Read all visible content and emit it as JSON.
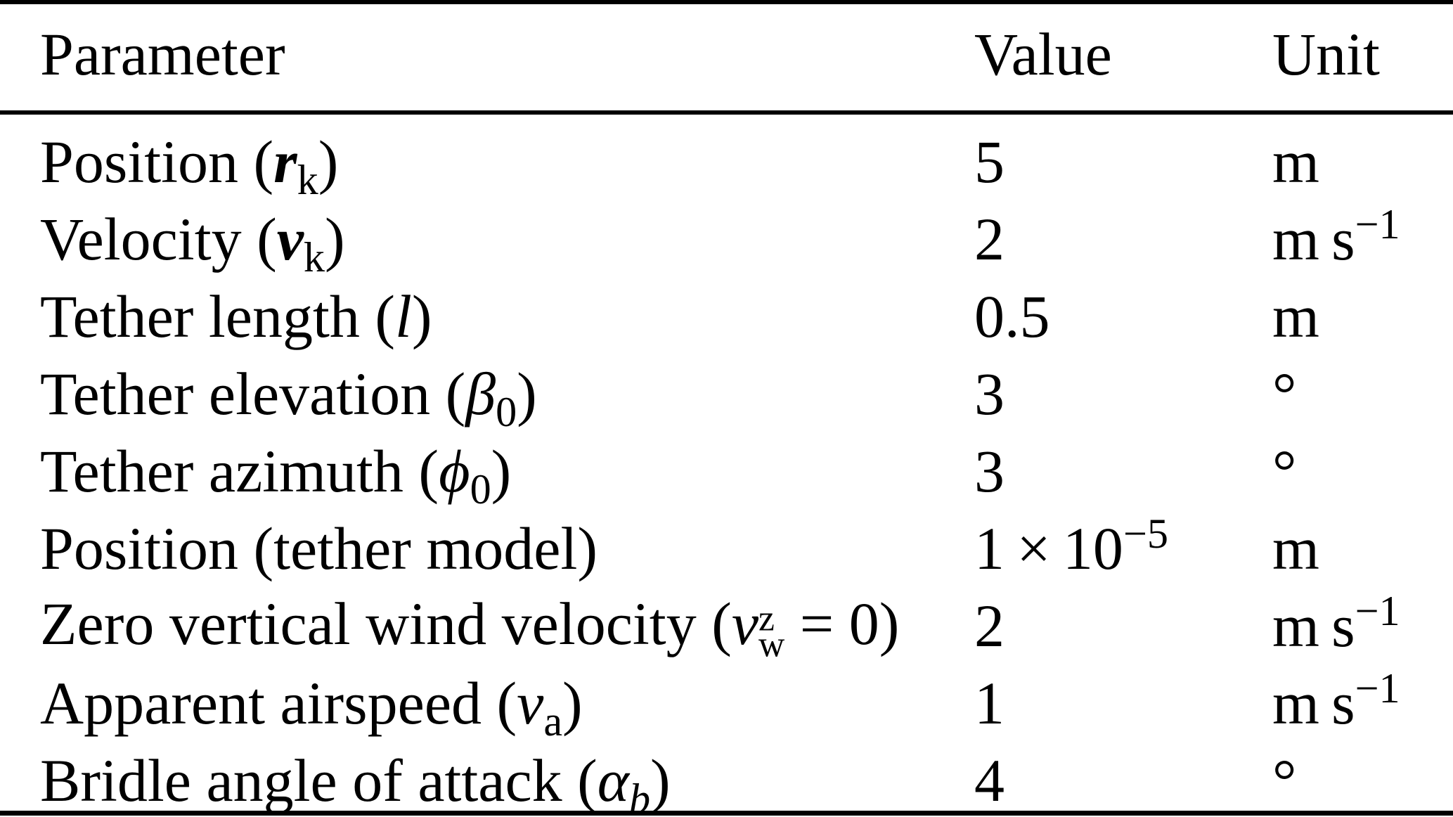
{
  "colors": {
    "text": "#000000",
    "background": "#ffffff",
    "rule": "#000000"
  },
  "table": {
    "headers": {
      "parameter": "Parameter",
      "value": "Value",
      "unit": "Unit"
    },
    "rows": [
      {
        "param": {
          "pre": "Position (",
          "sym": "r",
          "sub": "k",
          "post": ")"
        },
        "value": {
          "base": "5"
        },
        "unit": {
          "base": "m"
        }
      },
      {
        "param": {
          "pre": "Velocity (",
          "sym": "v",
          "sub": "k",
          "post": ")"
        },
        "value": {
          "base": "2"
        },
        "unit": {
          "base": "m s",
          "sup": "−1"
        }
      },
      {
        "param": {
          "pre": "Tether length (",
          "sym": "l",
          "post": ")"
        },
        "value": {
          "base": "0.5"
        },
        "unit": {
          "base": "m"
        }
      },
      {
        "param": {
          "pre": "Tether elevation (",
          "sym": "β",
          "sub": "0",
          "post": ")"
        },
        "value": {
          "base": "3"
        },
        "unit": {
          "base": "°"
        }
      },
      {
        "param": {
          "pre": "Tether azimuth (",
          "sym": "ϕ",
          "sub": "0",
          "post": ")"
        },
        "value": {
          "base": "3"
        },
        "unit": {
          "base": "°"
        }
      },
      {
        "param": {
          "pre": "Position (tether model)"
        },
        "value": {
          "base": "1 × 10",
          "sup": "−5"
        },
        "unit": {
          "base": "m"
        }
      },
      {
        "param": {
          "pre": "Zero vertical wind velocity (",
          "sym": "v",
          "sup": "z",
          "sub": "w",
          "post": " = 0)"
        },
        "value": {
          "base": "2"
        },
        "unit": {
          "base": "m s",
          "sup": "−1"
        }
      },
      {
        "param": {
          "pre": "Apparent airspeed (",
          "sym": "v",
          "sub": "a",
          "post": ")"
        },
        "value": {
          "base": "1"
        },
        "unit": {
          "base": "m s",
          "sup": "−1"
        }
      },
      {
        "param": {
          "pre": "Bridle angle of attack (",
          "sym": "α",
          "sub": "b",
          "post": ")"
        },
        "value": {
          "base": "4"
        },
        "unit": {
          "base": "°"
        }
      }
    ]
  }
}
